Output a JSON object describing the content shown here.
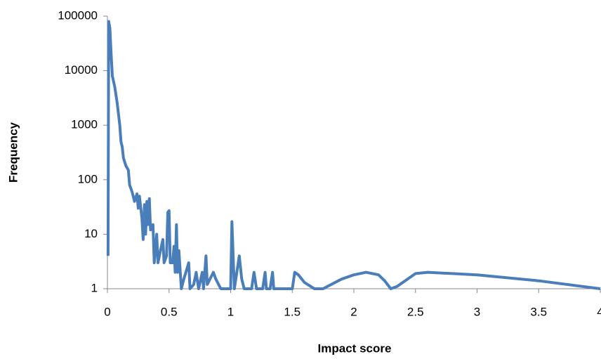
{
  "chart_data": {
    "type": "line",
    "x_label": "Impact score",
    "y_label": "Frequency",
    "log_y": true,
    "xlim": [
      0,
      4
    ],
    "ylim": [
      1,
      100000
    ],
    "xticks": [
      0,
      0.5,
      1,
      1.5,
      2,
      2.5,
      3,
      3.5,
      4
    ],
    "yticks": [
      1,
      10,
      100,
      1000,
      10000,
      100000
    ],
    "series": [
      {
        "color": "#4a7ebb",
        "x": [
          0.005,
          0.01,
          0.02,
          0.03,
          0.04,
          0.06,
          0.08,
          0.1,
          0.11,
          0.12,
          0.13,
          0.15,
          0.17,
          0.18,
          0.2,
          0.22,
          0.24,
          0.25,
          0.26,
          0.28,
          0.29,
          0.3,
          0.31,
          0.32,
          0.33,
          0.34,
          0.35,
          0.37,
          0.38,
          0.4,
          0.41,
          0.43,
          0.45,
          0.46,
          0.48,
          0.49,
          0.5,
          0.51,
          0.53,
          0.54,
          0.55,
          0.56,
          0.57,
          0.58,
          0.6,
          0.62,
          0.66,
          0.67,
          0.7,
          0.72,
          0.74,
          0.77,
          0.78,
          0.8,
          0.81,
          0.86,
          0.88,
          0.92,
          1.0,
          1.01,
          1.03,
          1.07,
          1.09,
          1.11,
          1.17,
          1.19,
          1.21,
          1.26,
          1.28,
          1.29,
          1.32,
          1.34,
          1.35,
          1.5,
          1.52,
          1.55,
          1.6,
          1.68,
          1.75,
          1.9,
          2.0,
          2.1,
          2.2,
          2.25,
          2.3,
          2.35,
          2.5,
          2.6,
          3.0,
          3.5,
          4.0
        ],
        "values": [
          4,
          80000,
          60000,
          20000,
          8000,
          5000,
          2500,
          1000,
          500,
          400,
          250,
          180,
          150,
          80,
          60,
          40,
          55,
          30,
          50,
          20,
          8,
          35,
          10,
          40,
          15,
          45,
          12,
          15,
          3,
          10,
          3,
          5,
          8,
          3,
          4,
          25,
          27,
          3,
          3,
          6,
          2,
          15,
          2,
          5,
          1,
          1.5,
          3,
          1,
          1.2,
          2,
          1,
          2,
          1,
          4,
          1.2,
          2,
          1.5,
          1,
          1,
          17,
          1,
          4,
          1.5,
          1,
          1,
          2,
          1,
          1,
          2,
          1,
          1,
          2,
          1,
          1,
          2,
          1.8,
          1.3,
          1,
          1,
          1.5,
          1.8,
          2,
          1.8,
          1.4,
          1,
          1.1,
          1.9,
          2,
          1.8,
          1.4,
          1
        ]
      }
    ]
  }
}
